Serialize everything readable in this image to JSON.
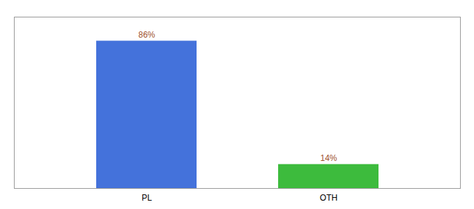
{
  "chart_data": {
    "type": "bar",
    "categories": [
      "PL",
      "OTH"
    ],
    "values": [
      86,
      14
    ],
    "value_labels": [
      "86%",
      "14%"
    ],
    "colors": [
      "#4472db",
      "#3dbb3d"
    ],
    "ylim": [
      0,
      100
    ],
    "data_labels": true,
    "tick_labels": "x"
  }
}
